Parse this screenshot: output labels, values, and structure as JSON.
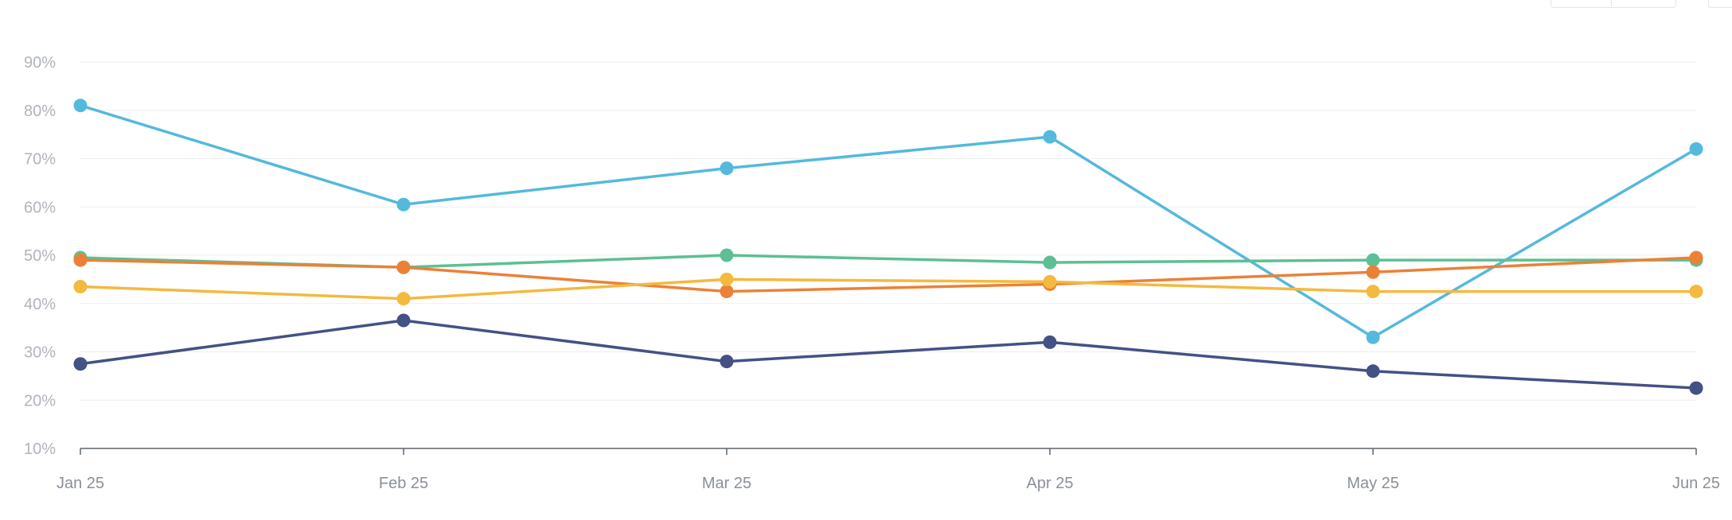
{
  "chart_data": {
    "type": "line",
    "title": "",
    "xlabel": "",
    "ylabel": "",
    "categories": [
      "Jan 25",
      "Feb 25",
      "Mar 25",
      "Apr 25",
      "May 25",
      "Jun 25"
    ],
    "y_ticks": [
      "10%",
      "20%",
      "30%",
      "40%",
      "50%",
      "60%",
      "70%",
      "80%",
      "90%"
    ],
    "ylim": [
      10,
      90
    ],
    "y_unit": "%",
    "grid": true,
    "legend": "none",
    "series": [
      {
        "color": "#54b9dd",
        "values": [
          81,
          60.5,
          68,
          74.5,
          33,
          72
        ]
      },
      {
        "color": "#5dbf92",
        "values": [
          49.5,
          47.5,
          50,
          48.5,
          49,
          49
        ]
      },
      {
        "color": "#eb8136",
        "values": [
          49,
          47.5,
          42.5,
          44,
          46.5,
          49.5
        ]
      },
      {
        "color": "#f4b93f",
        "values": [
          43.5,
          41,
          45,
          44.5,
          42.5,
          42.5
        ]
      },
      {
        "color": "#435185",
        "values": [
          27.5,
          36.5,
          28,
          32,
          26,
          22.5
        ]
      }
    ]
  }
}
